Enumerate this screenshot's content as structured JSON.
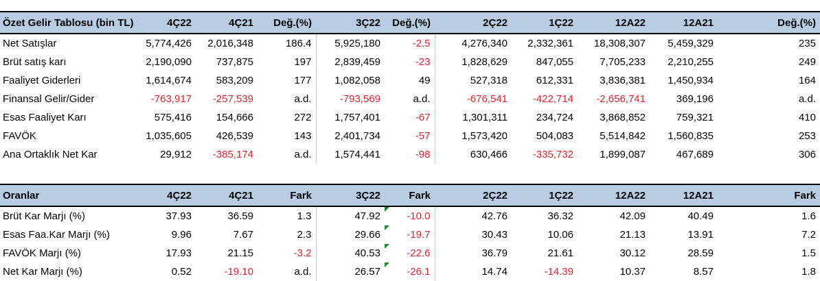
{
  "summary": {
    "headers": [
      "Özet Gelir Tablosu (bin TL)",
      "4Ç22",
      "4Ç21",
      "Değ.(%)",
      "3Ç22",
      "Değ.(%)",
      "2Ç22",
      "1Ç22",
      "12A22",
      "12A21",
      "Değ.(%)"
    ],
    "rows": [
      {
        "label": "Net Satışlar",
        "cells": [
          "5,774,426",
          "2,016,348",
          "186.4",
          "5,925,180",
          "-2.5",
          "4,276,340",
          "2,332,361",
          "18,308,307",
          "5,459,329",
          "235"
        ]
      },
      {
        "label": "Brüt satış karı",
        "cells": [
          "2,190,090",
          "737,875",
          "197",
          "2,839,459",
          "-23",
          "1,828,629",
          "847,055",
          "7,705,233",
          "2,210,255",
          "249"
        ]
      },
      {
        "label": "Faaliyet Giderleri",
        "cells": [
          "1,614,674",
          "583,209",
          "177",
          "1,082,058",
          "49",
          "527,318",
          "612,331",
          "3,836,381",
          "1,450,934",
          "164"
        ]
      },
      {
        "label": "Finansal Gelir/Gider",
        "cells": [
          "-763,917",
          "-257,539",
          "a.d.",
          "-793,569",
          "a.d.",
          "-676,541",
          "-422,714",
          "-2,656,741",
          "369,196",
          "a.d."
        ]
      },
      {
        "label": "Esas Faaliyet Karı",
        "cells": [
          "575,416",
          "154,666",
          "272",
          "1,757,401",
          "-67",
          "1,301,311",
          "234,724",
          "3,868,852",
          "759,321",
          "410"
        ]
      },
      {
        "label": "FAVÖK",
        "cells": [
          "1,035,605",
          "426,539",
          "143",
          "2,401,734",
          "-57",
          "1,573,420",
          "504,083",
          "5,514,842",
          "1,560,835",
          "253"
        ]
      },
      {
        "label": "Ana Ortaklık Net Kar",
        "cells": [
          "29,912",
          "-385,174",
          "a.d.",
          "1,574,441",
          "-98",
          "630,466",
          "-335,732",
          "1,899,087",
          "467,689",
          "306"
        ]
      }
    ]
  },
  "ratios": {
    "headers": [
      "Oranlar",
      "4Ç22",
      "4Ç21",
      "Fark",
      "3Ç22",
      "Fark",
      "2Ç22",
      "1Ç22",
      "12A22",
      "12A21",
      "Fark"
    ],
    "rows": [
      {
        "label": "Brüt Kar Marjı (%)",
        "cells": [
          "37.93",
          "36.59",
          "1.3",
          "47.92",
          "-10.0",
          "42.76",
          "36.32",
          "42.09",
          "40.49",
          "1.6"
        ]
      },
      {
        "label": "Esas Faa.Kar Marjı (%)",
        "cells": [
          "9.96",
          "7.67",
          "2.3",
          "29.66",
          "-19.7",
          "30.43",
          "10.06",
          "21.13",
          "13.91",
          "7.2"
        ]
      },
      {
        "label": "FAVÖK Marjı (%)",
        "cells": [
          "17.93",
          "21.15",
          "-3.2",
          "40.53",
          "-22.6",
          "36.79",
          "21.61",
          "30.12",
          "28.59",
          "1.5"
        ]
      },
      {
        "label": "Net Kar Marjı (%)",
        "cells": [
          "0.52",
          "-19.10",
          "a.d.",
          "26.57",
          "-26.1",
          "14.74",
          "-14.39",
          "10.37",
          "8.57",
          "1.8"
        ]
      }
    ]
  },
  "colors": {
    "header_bg": "#b8cce4",
    "negative": "#e8212e",
    "comment_marker": "#1a8a2e"
  }
}
